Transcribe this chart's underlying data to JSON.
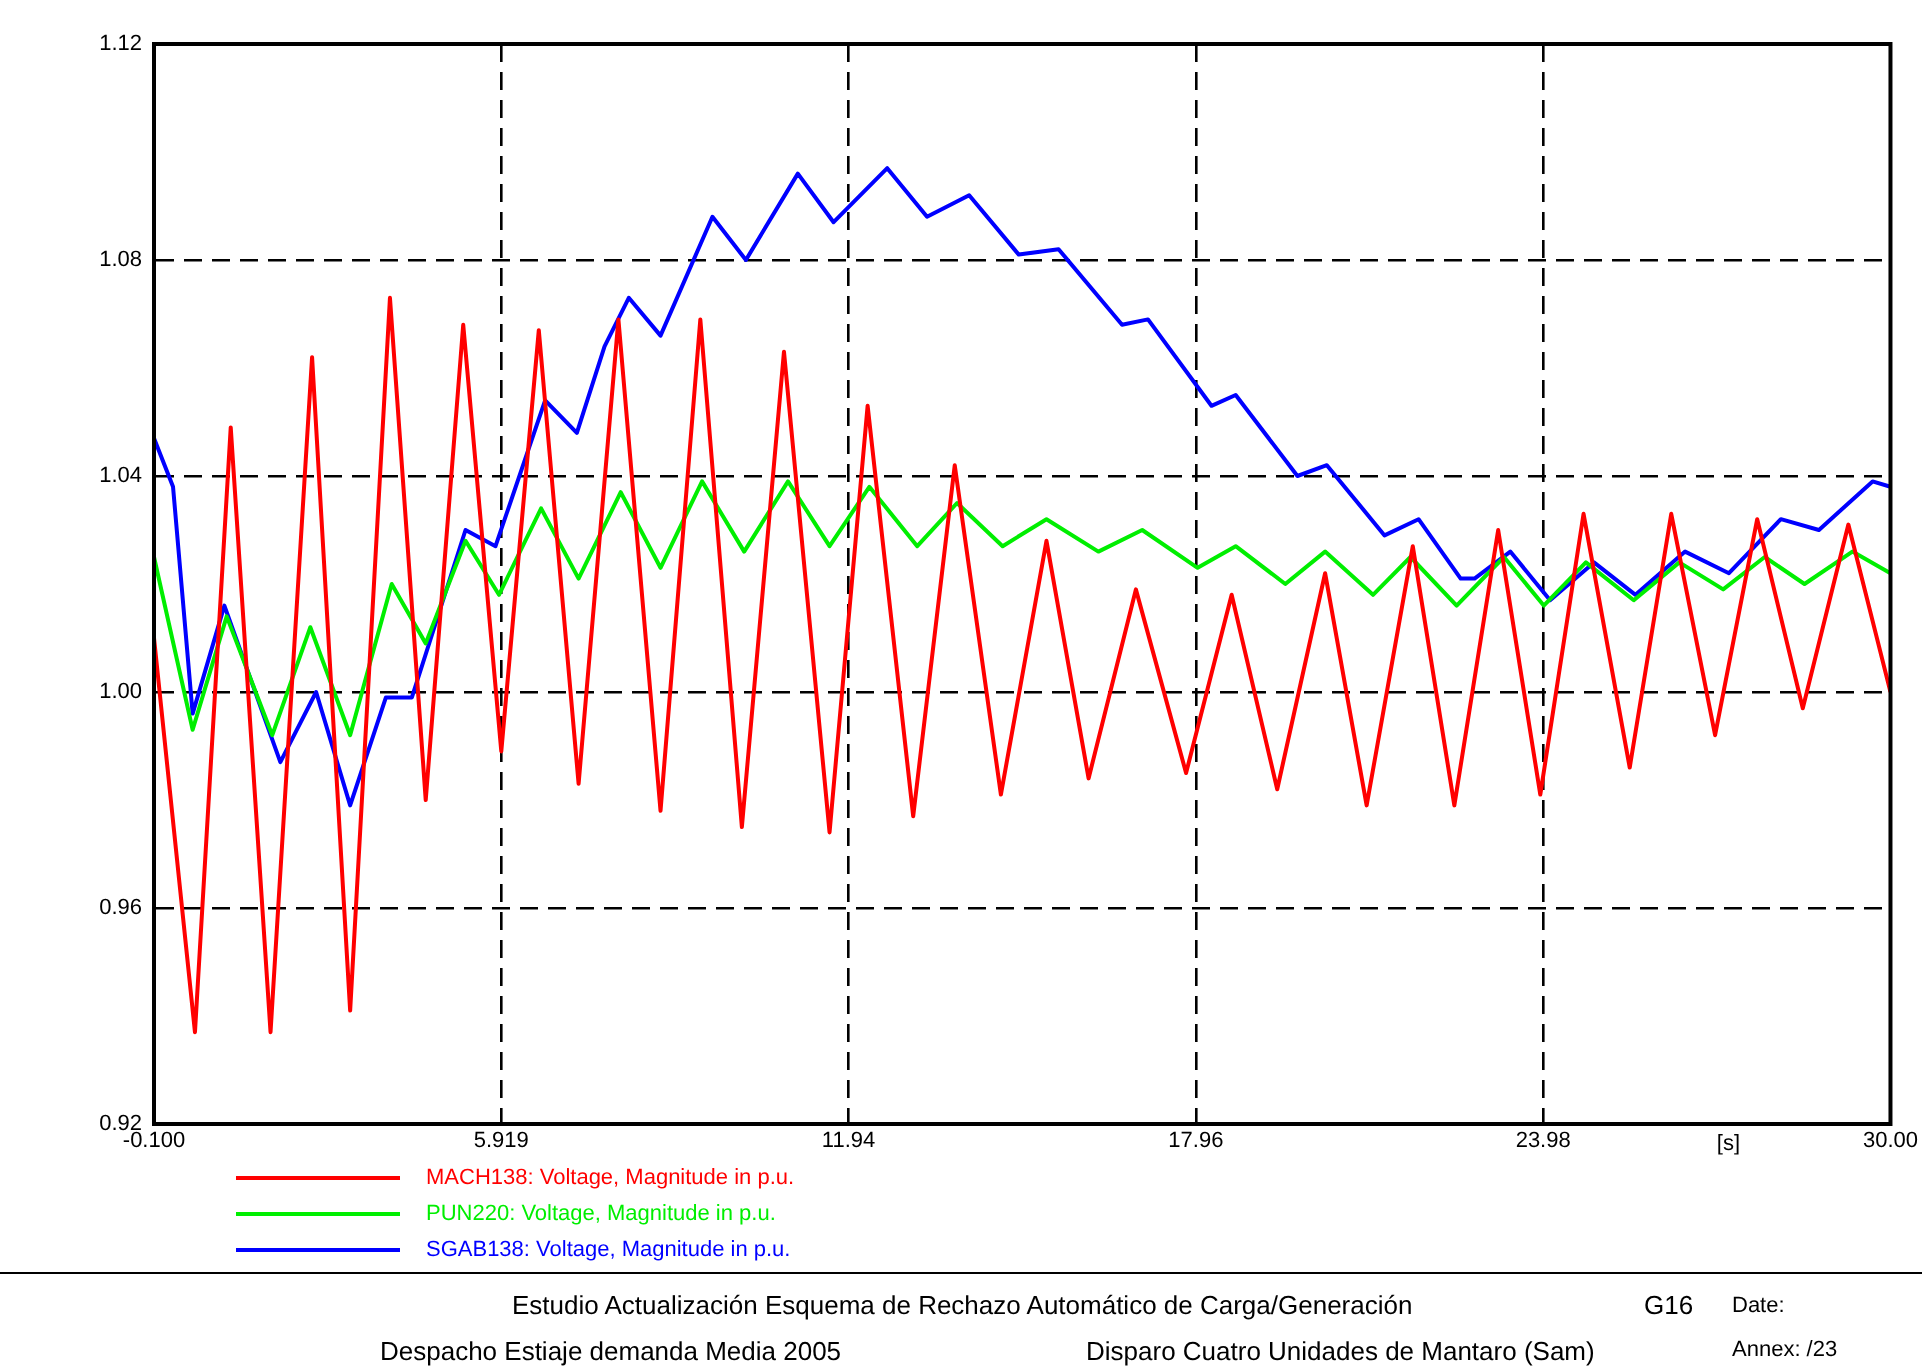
{
  "chart_data": {
    "type": "line",
    "xlabel": "[s]",
    "xlim": [
      -0.1,
      30
    ],
    "xticks": [
      {
        "value": -0.1,
        "label": "-0.100"
      },
      5.919,
      11.94,
      17.96,
      23.98,
      {
        "value": 30,
        "label": "30.00"
      }
    ],
    "ylim": [
      0.92,
      1.12
    ],
    "yticks": [
      0.92,
      0.96,
      {
        "value": 1,
        "label": "1.00"
      },
      1.04,
      1.08,
      1.12
    ],
    "grid": true,
    "legend": "bottom left",
    "marker": "none",
    "line_style": "solid",
    "series": [
      {
        "name": "MACH138: Voltage, Magnitude in p.u.",
        "color": "#ff0000",
        "x": [
          -0.1,
          0.61,
          1.23,
          1.92,
          2.64,
          3.3,
          3.99,
          4.61,
          5.26,
          5.92,
          6.57,
          7.26,
          7.95,
          8.68,
          9.37,
          10.09,
          10.82,
          11.61,
          12.27,
          13.06,
          13.78,
          14.58,
          15.37,
          16.1,
          16.92,
          17.79,
          18.58,
          19.37,
          20.2,
          20.92,
          21.72,
          22.44,
          23.2,
          23.93,
          24.68,
          25.48,
          26.2,
          26.96,
          27.69,
          28.48,
          29.27,
          30
        ],
        "values": [
          1.01,
          0.937,
          1.049,
          0.937,
          1.062,
          0.941,
          1.073,
          0.98,
          1.068,
          0.989,
          1.067,
          0.983,
          1.069,
          0.978,
          1.069,
          0.975,
          1.063,
          0.974,
          1.053,
          0.977,
          1.042,
          0.981,
          1.028,
          0.984,
          1.019,
          0.985,
          1.018,
          0.982,
          1.022,
          0.979,
          1.027,
          0.979,
          1.03,
          0.981,
          1.033,
          0.986,
          1.033,
          0.992,
          1.032,
          0.997,
          1.031,
          1.0
        ]
      },
      {
        "name": "PUN220: Voltage, Magnitude in p.u.",
        "color": "#00ee00",
        "x": [
          -0.1,
          0.57,
          1.16,
          1.95,
          2.61,
          3.3,
          4.02,
          4.61,
          5.3,
          5.88,
          6.61,
          7.26,
          7.99,
          8.68,
          9.4,
          10.13,
          10.89,
          11.61,
          12.3,
          13.13,
          13.82,
          14.61,
          15.37,
          16.27,
          17.03,
          17.99,
          18.65,
          19.51,
          20.2,
          21.03,
          21.68,
          22.48,
          23.3,
          23.99,
          24.72,
          25.55,
          26.34,
          27.1,
          27.82,
          28.51,
          29.34,
          30
        ],
        "values": [
          1.025,
          0.993,
          1.014,
          0.992,
          1.012,
          0.992,
          1.02,
          1.009,
          1.028,
          1.018,
          1.034,
          1.021,
          1.037,
          1.023,
          1.039,
          1.026,
          1.039,
          1.027,
          1.038,
          1.027,
          1.035,
          1.027,
          1.032,
          1.026,
          1.03,
          1.023,
          1.027,
          1.02,
          1.026,
          1.018,
          1.025,
          1.016,
          1.025,
          1.016,
          1.024,
          1.017,
          1.024,
          1.019,
          1.025,
          1.02,
          1.026,
          1.022
        ]
      },
      {
        "name": "SGAB138: Voltage, Magnitude in p.u.",
        "color": "#0000ff",
        "x": [
          -0.1,
          0.23,
          0.57,
          1.12,
          2.09,
          2.71,
          3.3,
          3.92,
          4.37,
          5.3,
          5.82,
          6.68,
          7.23,
          7.71,
          8.13,
          8.68,
          9.58,
          10.16,
          11.06,
          11.68,
          12.61,
          13.3,
          14.03,
          14.89,
          15.58,
          16.68,
          17.13,
          18.23,
          18.65,
          19.72,
          20.23,
          21.23,
          21.82,
          22.55,
          22.79,
          23.41,
          24.1,
          24.86,
          25.58,
          26.44,
          27.2,
          28.1,
          28.76,
          29.69,
          30
        ],
        "values": [
          1.047,
          1.038,
          0.996,
          1.016,
          0.987,
          1.0,
          0.979,
          0.999,
          0.999,
          1.03,
          1.027,
          1.054,
          1.048,
          1.064,
          1.073,
          1.066,
          1.088,
          1.08,
          1.096,
          1.087,
          1.097,
          1.088,
          1.092,
          1.081,
          1.082,
          1.068,
          1.069,
          1.053,
          1.055,
          1.04,
          1.042,
          1.029,
          1.032,
          1.021,
          1.021,
          1.026,
          1.017,
          1.024,
          1.018,
          1.026,
          1.022,
          1.032,
          1.03,
          1.039,
          1.038
        ]
      }
    ],
    "annotations": [
      "Estudio Actualización Esquema de Rechazo Automático de Carga/Generación",
      "G16",
      "Despacho Estiaje demanda Media 2005",
      "Disparo Cuatro Unidades de Mantaro (Sam)",
      "Date:",
      "Annex:   /23"
    ]
  }
}
